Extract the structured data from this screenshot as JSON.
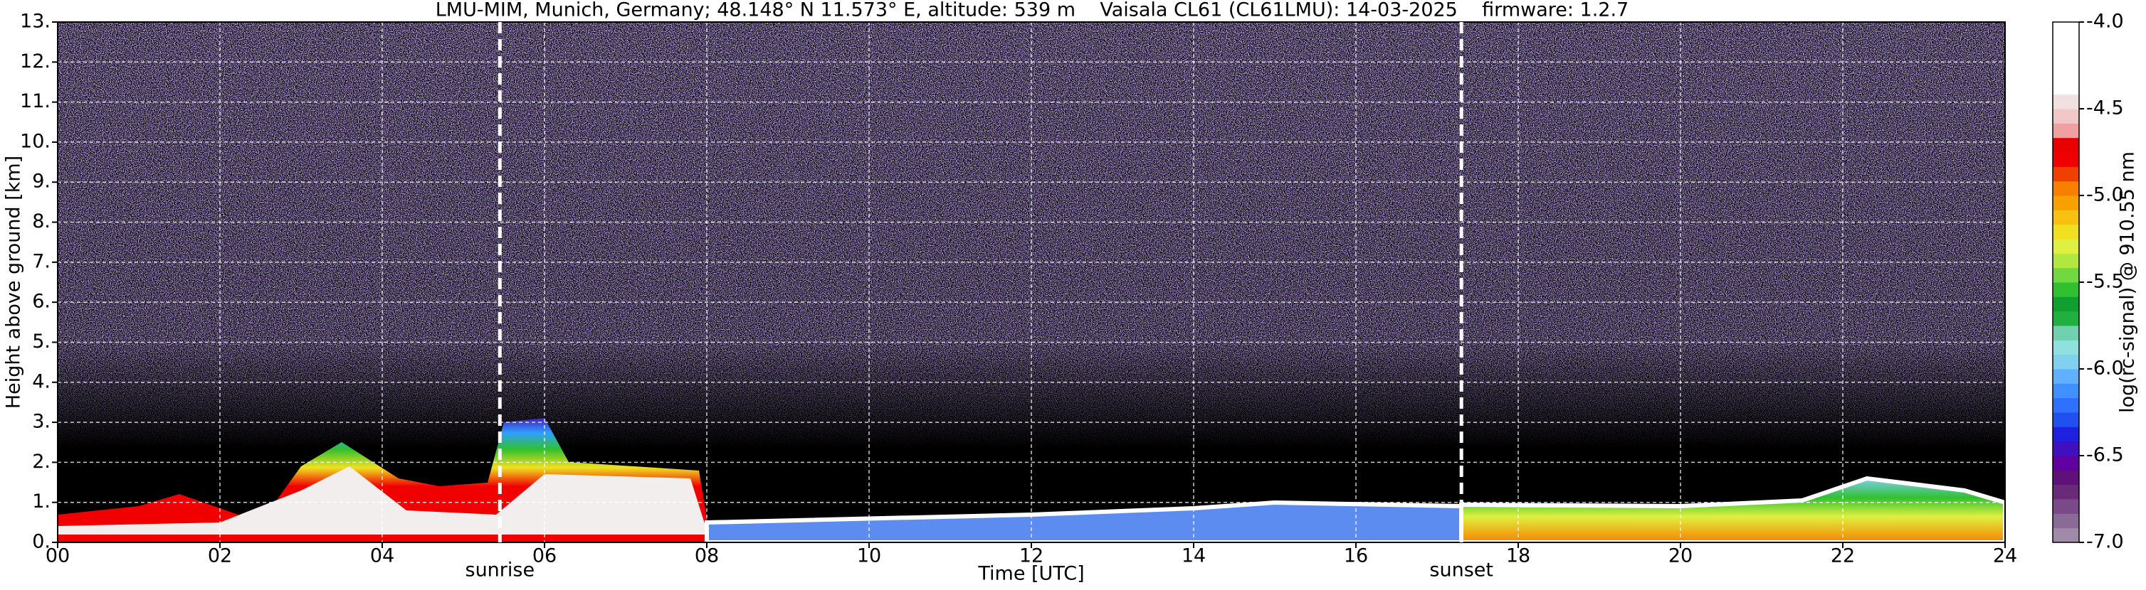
{
  "chart_data": {
    "type": "heatmap",
    "title": "LMU-MIM, Munich, Germany; 48.148° N 11.573° E, altitude: 539 m    Vaisala CL61 (CL61LMU): 14-03-2025    firmware: 1.2.7",
    "xlabel": "Time [UTC]",
    "ylabel": "Height above ground [km]",
    "xlim": [
      0,
      24
    ],
    "xticks": [
      {
        "value": 0,
        "label": "00"
      },
      {
        "value": 2,
        "label": "02"
      },
      {
        "value": 4,
        "label": "04"
      },
      {
        "value": 6,
        "label": "06"
      },
      {
        "value": 8,
        "label": "08"
      },
      {
        "value": 10,
        "label": "10"
      },
      {
        "value": 12,
        "label": "12"
      },
      {
        "value": 14,
        "label": "14"
      },
      {
        "value": 16,
        "label": "16"
      },
      {
        "value": 18,
        "label": "18"
      },
      {
        "value": 20,
        "label": "20"
      },
      {
        "value": 22,
        "label": "22"
      },
      {
        "value": 24,
        "label": "24"
      }
    ],
    "ylim": [
      0,
      13
    ],
    "yticks": [
      {
        "value": 0,
        "label": "0."
      },
      {
        "value": 1,
        "label": "1."
      },
      {
        "value": 2,
        "label": "2."
      },
      {
        "value": 3,
        "label": "3."
      },
      {
        "value": 4,
        "label": "4."
      },
      {
        "value": 5,
        "label": "5."
      },
      {
        "value": 6,
        "label": "6."
      },
      {
        "value": 7,
        "label": "7."
      },
      {
        "value": 8,
        "label": "8."
      },
      {
        "value": 9,
        "label": "9."
      },
      {
        "value": 10,
        "label": "10."
      },
      {
        "value": 11,
        "label": "11."
      },
      {
        "value": 12,
        "label": "12."
      },
      {
        "value": 13,
        "label": "13."
      }
    ],
    "grid": true,
    "annotations": [
      {
        "label": "sunrise",
        "x": 5.45
      },
      {
        "label": "sunset",
        "x": 17.3
      }
    ],
    "colorbar": {
      "label": "log(rc-signal) @ 910.55 nm",
      "lim": [
        -7,
        -4
      ],
      "ticks": [
        {
          "value": -7,
          "label": "-7.0"
        },
        {
          "value": -6.5,
          "label": "-6.5"
        },
        {
          "value": -6,
          "label": "-6.0"
        },
        {
          "value": -5.5,
          "label": "-5.5"
        },
        {
          "value": -5,
          "label": "-5.0"
        },
        {
          "value": -4.5,
          "label": "-4.5"
        },
        {
          "value": -4,
          "label": "-4.0"
        }
      ],
      "colors": [
        "#a08aa8",
        "#8a6a96",
        "#7a4a88",
        "#6a2a7a",
        "#60107a",
        "#6000a0",
        "#4010c0",
        "#2020e0",
        "#2050f0",
        "#3070ff",
        "#4090ff",
        "#60b0ff",
        "#80d0f0",
        "#90e0e0",
        "#70d0b0",
        "#20b040",
        "#10a030",
        "#30c030",
        "#70d840",
        "#b0e840",
        "#e0f040",
        "#f0e020",
        "#f8c010",
        "#f8a000",
        "#f88000",
        "#f04000",
        "#f00000",
        "#e80000",
        "#f0a0a0",
        "#f0c8c8",
        "#f0e0e0",
        "#ffffff",
        "#ffffff",
        "#ffffff",
        "#ffffff",
        "#ffffff"
      ]
    }
  }
}
